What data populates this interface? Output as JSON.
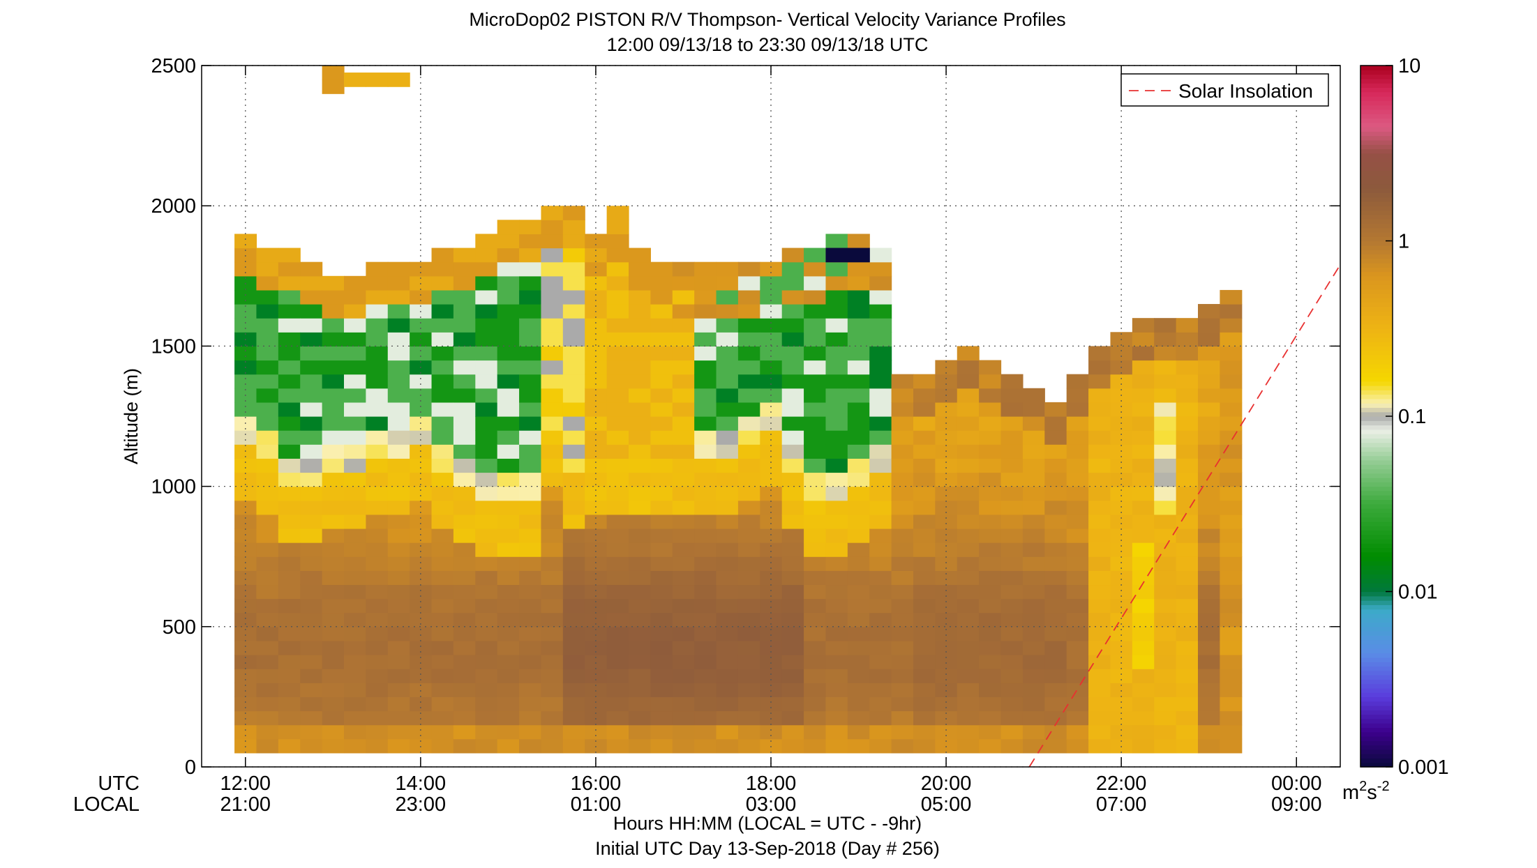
{
  "chart_data": {
    "type": "heatmap",
    "title": "MicroDop02 PISTON R/V Thompson- Vertical Velocity Variance Profiles",
    "subtitle": "12:00 09/13/18 to 23:30 09/13/18  UTC",
    "ylabel": "Altitude (m)",
    "xlabel": "Hours HH:MM  (LOCAL = UTC - -9hr)",
    "footer": "Initial UTC Day 13-Sep-2018 (Day # 256)",
    "x_row_labels": {
      "utc": "UTC",
      "local": "LOCAL"
    },
    "xlim": [
      11.5,
      24.5
    ],
    "ylim": [
      0,
      2500
    ],
    "x_ticks": [
      {
        "x": 12,
        "utc": "12:00",
        "local": "21:00"
      },
      {
        "x": 14,
        "utc": "14:00",
        "local": "23:00"
      },
      {
        "x": 16,
        "utc": "16:00",
        "local": "01:00"
      },
      {
        "x": 18,
        "utc": "18:00",
        "local": "03:00"
      },
      {
        "x": 20,
        "utc": "20:00",
        "local": "05:00"
      },
      {
        "x": 22,
        "utc": "22:00",
        "local": "07:00"
      },
      {
        "x": 24,
        "utc": "00:00",
        "local": "09:00"
      }
    ],
    "y_ticks": [
      0,
      500,
      1000,
      1500,
      2000,
      2500
    ],
    "grid": true,
    "colorbar": {
      "scale": "log",
      "range": [
        0.001,
        10
      ],
      "ticks": [
        "10",
        "1",
        "0.1",
        "0.01",
        "0.001"
      ],
      "unit": "m2s-2"
    },
    "legend": {
      "placement": "top-right",
      "entry": "Solar Insolation",
      "color": "#e83030"
    },
    "solar_insolation_line": {
      "x": [
        20.95,
        24.5
      ],
      "y": [
        0,
        1790
      ]
    },
    "time_step_hours": 0.25,
    "height_step_m": 50,
    "start_altitude_m": 75,
    "profiles": [
      {
        "t": 12.0,
        "top": 1875,
        "low": 1150,
        "uc": "green",
        "band": 0
      },
      {
        "t": 12.25,
        "top": 1825,
        "low": 1100,
        "uc": "green",
        "band": 0
      },
      {
        "t": 12.5,
        "top": 1825,
        "low": 1000,
        "uc": "green",
        "band": 0
      },
      {
        "t": 12.75,
        "top": 1775,
        "low": 1000,
        "uc": "green",
        "band": 0
      },
      {
        "t": 13.0,
        "top": 1725,
        "low": 1050,
        "uc": "green",
        "band": 0
      },
      {
        "t": 13.25,
        "top": 1725,
        "low": 1050,
        "uc": "green",
        "band": 0
      },
      {
        "t": 13.5,
        "top": 1775,
        "low": 1100,
        "uc": "green",
        "band": 0
      },
      {
        "t": 13.75,
        "top": 1775,
        "low": 1100,
        "uc": "green",
        "band": 0
      },
      {
        "t": 14.0,
        "top": 1775,
        "low": 1150,
        "uc": "green",
        "band": 0
      },
      {
        "t": 14.25,
        "top": 1825,
        "low": 1050,
        "uc": "green",
        "band": 0
      },
      {
        "t": 14.5,
        "top": 1825,
        "low": 1000,
        "uc": "green",
        "band": 0
      },
      {
        "t": 14.75,
        "top": 1875,
        "low": 950,
        "uc": "green",
        "band": 0
      },
      {
        "t": 15.0,
        "top": 1925,
        "low": 950,
        "uc": "green",
        "band": 0
      },
      {
        "t": 15.25,
        "top": 1925,
        "low": 950,
        "uc": "green",
        "band": 0
      },
      {
        "t": 15.5,
        "top": 1975,
        "low": 1200,
        "uc": "pale",
        "band": 0
      },
      {
        "t": 15.75,
        "top": 1975,
        "low": 1050,
        "uc": "pale",
        "band": 0
      },
      {
        "t": 16.0,
        "top": 1875,
        "low": 1100,
        "uc": "yellow",
        "band": 0
      },
      {
        "t": 16.25,
        "top": 1925,
        "low": 1100,
        "uc": "yellow",
        "band": 0
      },
      {
        "t": 16.5,
        "top": 1825,
        "low": 1100,
        "uc": "yellow",
        "band": 0
      },
      {
        "t": 16.75,
        "top": 1775,
        "low": 1100,
        "uc": "yellow",
        "band": 0
      },
      {
        "t": 17.0,
        "top": 1775,
        "low": 1100,
        "uc": "yellow",
        "band": 1
      },
      {
        "t": 17.25,
        "top": 1775,
        "low": 1100,
        "uc": "green",
        "band": 1
      },
      {
        "t": 17.5,
        "top": 1775,
        "low": 1100,
        "uc": "green",
        "band": 1
      },
      {
        "t": 17.75,
        "top": 1775,
        "low": 1150,
        "uc": "green",
        "band": 1
      },
      {
        "t": 18.0,
        "top": 1775,
        "low": 1200,
        "uc": "green",
        "band": 1
      },
      {
        "t": 18.25,
        "top": 1825,
        "low": 1050,
        "uc": "green",
        "band": 1
      },
      {
        "t": 18.5,
        "top": 1825,
        "low": 950,
        "uc": "green",
        "band": 1
      },
      {
        "t": 18.75,
        "top": 1875,
        "low": 950,
        "uc": "green",
        "band": 1
      },
      {
        "t": 19.0,
        "top": 1875,
        "low": 1000,
        "uc": "green",
        "band": 1
      },
      {
        "t": 19.25,
        "top": 1825,
        "low": 1050,
        "uc": "green",
        "band": 1
      },
      {
        "t": 19.5,
        "top": 1375,
        "low": 1300,
        "uc": "none",
        "band": 0
      },
      {
        "t": 19.75,
        "top": 1375,
        "low": 1300,
        "uc": "none",
        "band": 0
      },
      {
        "t": 20.0,
        "top": 1425,
        "low": 1300,
        "uc": "none",
        "band": 0
      },
      {
        "t": 20.25,
        "top": 1475,
        "low": 1300,
        "uc": "none",
        "band": 0
      },
      {
        "t": 20.5,
        "top": 1425,
        "low": 1300,
        "uc": "none",
        "band": 0
      },
      {
        "t": 20.75,
        "top": 1375,
        "low": 1300,
        "uc": "none",
        "band": 0
      },
      {
        "t": 21.0,
        "top": 1325,
        "low": 1300,
        "uc": "none",
        "band": 0
      },
      {
        "t": 21.25,
        "top": 1275,
        "low": 1300,
        "uc": "none",
        "band": 0
      },
      {
        "t": 21.5,
        "top": 1375,
        "low": 1300,
        "uc": "none",
        "band": 0
      },
      {
        "t": 21.75,
        "top": 1475,
        "low": 1300,
        "uc": "none",
        "band": 0
      },
      {
        "t": 22.0,
        "top": 1525,
        "low": 1300,
        "uc": "none",
        "band": 0
      },
      {
        "t": 22.25,
        "top": 1575,
        "low": 1300,
        "uc": "none",
        "band": 0
      },
      {
        "t": 22.5,
        "top": 1575,
        "low": 1300,
        "uc": "none",
        "band": 0
      },
      {
        "t": 22.75,
        "top": 1575,
        "low": 1300,
        "uc": "none",
        "band": 0
      },
      {
        "t": 23.0,
        "top": 1625,
        "low": 1300,
        "uc": "none",
        "band": 0
      },
      {
        "t": 23.25,
        "top": 1675,
        "low": 1300,
        "uc": "none",
        "band": 0
      }
    ],
    "isolated_cells": [
      {
        "t": 13.0,
        "alt": 2425,
        "v": 0.6
      },
      {
        "t": 13.0,
        "alt": 2475,
        "v": 0.6
      },
      {
        "t": 13.25,
        "alt": 2450,
        "v": 0.35
      },
      {
        "t": 13.5,
        "alt": 2450,
        "v": 0.35
      },
      {
        "t": 13.75,
        "alt": 2450,
        "v": 0.35
      },
      {
        "t": 16.25,
        "alt": 1975,
        "v": 0.4
      },
      {
        "t": 18.75,
        "alt": 1825,
        "v": 0.001
      },
      {
        "t": 19.0,
        "alt": 1825,
        "v": 0.001
      }
    ]
  }
}
